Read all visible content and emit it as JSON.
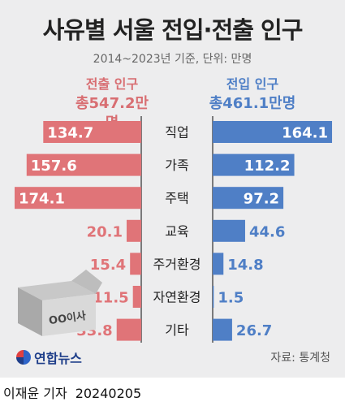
{
  "title": "사유별 서울 전입·전출 인구",
  "subtitle": "2014~2023년 기준, 단위: 만명",
  "legend": {
    "out_label": "전출 인구",
    "out_total": "총547.2만명",
    "in_label": "전입 인구",
    "in_total": "총461.1만명"
  },
  "colors": {
    "out": "#e07478",
    "in": "#4f7fc6",
    "panel": "#ededee"
  },
  "illustration": {
    "box_text": "OO이사"
  },
  "source": "자료: 통계청",
  "logo": "연합뉴스",
  "footer": {
    "reporter": "이재윤 기자",
    "date": "20240205"
  },
  "chart_data": {
    "type": "bar",
    "orientation": "horizontal-diverging",
    "categories": [
      "직업",
      "가족",
      "주택",
      "교육",
      "주거환경",
      "자연환경",
      "기타"
    ],
    "series": [
      {
        "name": "전출 인구",
        "values": [
          134.7,
          157.6,
          174.1,
          20.1,
          15.4,
          11.5,
          33.8
        ]
      },
      {
        "name": "전입 인구",
        "values": [
          164.1,
          112.2,
          97.2,
          44.6,
          14.8,
          1.5,
          26.7
        ]
      }
    ],
    "unit": "만명"
  }
}
